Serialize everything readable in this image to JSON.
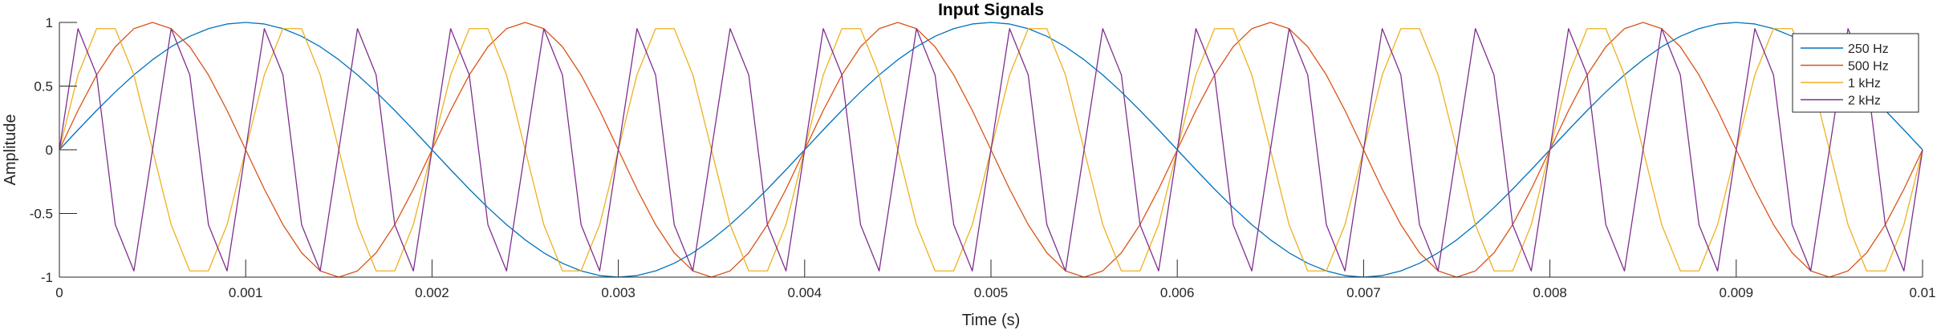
{
  "chart_data": {
    "type": "line",
    "title": "Input Signals",
    "xlabel": "Time (s)",
    "ylabel": "Amplitude",
    "xlim": [
      0,
      0.01
    ],
    "ylim": [
      -1,
      1
    ],
    "x_ticks": [
      0,
      0.001,
      0.002,
      0.003,
      0.004,
      0.005,
      0.006,
      0.007,
      0.008,
      0.009,
      0.01
    ],
    "x_tick_labels": [
      "0",
      "0.001",
      "0.002",
      "0.003",
      "0.004",
      "0.005",
      "0.006",
      "0.007",
      "0.008",
      "0.009",
      "0.01"
    ],
    "y_ticks": [
      -1,
      -0.5,
      0,
      0.5,
      1
    ],
    "y_tick_labels": [
      "-1",
      "-0.5",
      "0",
      "0.5",
      "1"
    ],
    "grid": false,
    "legend_position": "top-right",
    "sample_interval_s": 0.0001,
    "series": [
      {
        "name": "250 Hz",
        "color": "#0072BD",
        "frequency_hz": 250,
        "waveform": "sine",
        "amplitude": 1,
        "x_start": 0,
        "x_end": 0.01
      },
      {
        "name": "500 Hz",
        "color": "#D95319",
        "frequency_hz": 500,
        "waveform": "sine",
        "amplitude": 1,
        "x_start": 0,
        "x_end": 0.01
      },
      {
        "name": "1 kHz",
        "color": "#EDB120",
        "frequency_hz": 1000,
        "waveform": "sine",
        "amplitude": 1,
        "x_start": 0,
        "x_end": 0.01
      },
      {
        "name": "2 kHz",
        "color": "#7E2F8E",
        "frequency_hz": 2000,
        "waveform": "sine",
        "amplitude": 1,
        "x_start": 0,
        "x_end": 0.01
      }
    ]
  }
}
